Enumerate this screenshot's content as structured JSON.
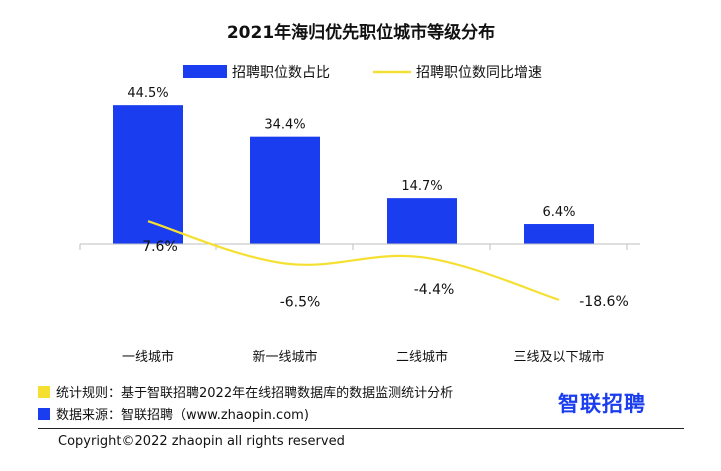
{
  "chart_data": {
    "type": "bar",
    "title": "2021年海归优先职位城市等级分布",
    "categories": [
      "一线城市",
      "新一线城市",
      "二线城市",
      "三线及以下城市"
    ],
    "series": [
      {
        "name": "招聘职位数占比",
        "type": "bar",
        "values": [
          44.5,
          34.4,
          14.7,
          6.4
        ],
        "labels": [
          "44.5%",
          "34.4%",
          "14.7%",
          "6.4%"
        ],
        "color": "#1a3df0"
      },
      {
        "name": "招聘职位数同比增速",
        "type": "line",
        "values": [
          7.6,
          -6.5,
          -4.4,
          -18.6
        ],
        "labels": [
          "7.6%",
          "-6.5%",
          "-4.4%",
          "-18.6%"
        ],
        "color": "#f5e032"
      }
    ],
    "legend_position": "top-center",
    "grid": false
  },
  "footer": {
    "rule_text": "统计规则：基于智联招聘2022年在线招聘数据库的数据监测统计分析",
    "source_text": "数据来源：智联招聘（www.zhaopin.com)",
    "brand": "智联招聘",
    "copyright": "Copyright©2022 zhaopin all rights reserved"
  },
  "colors": {
    "bar": "#1a3df0",
    "line": "#f5e032",
    "note_yellow": "#f5e032",
    "note_blue": "#1a3df0"
  }
}
